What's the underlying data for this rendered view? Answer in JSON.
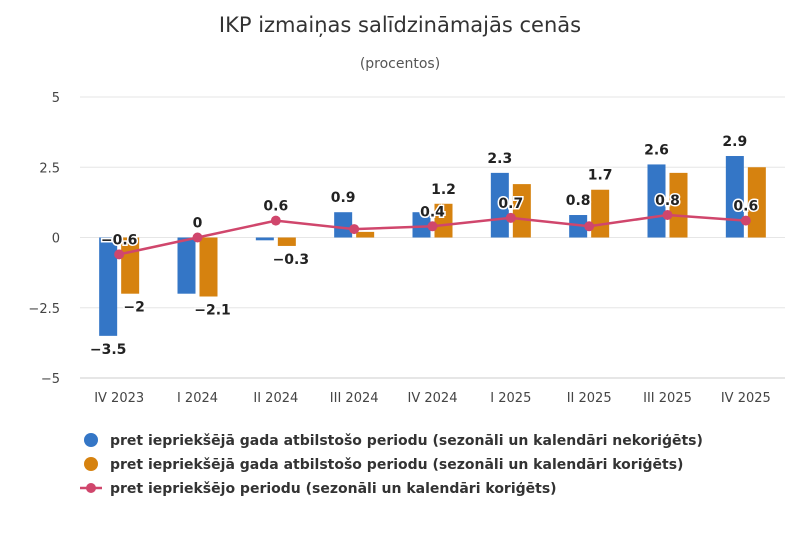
{
  "chart_data": {
    "type": "bar",
    "title": "IKP izmaiņas salīdzināmajās cenās",
    "subtitle": "(procentos)",
    "categories": [
      "IV 2023",
      "I 2024",
      "II 2024",
      "III 2024",
      "IV 2024",
      "I 2025",
      "II 2025",
      "III 2025",
      "IV 2025"
    ],
    "ylim": [
      -5,
      5
    ],
    "yticks": [
      5,
      2.5,
      0,
      -2.5,
      -5
    ],
    "ytick_labels": [
      "5",
      "2.5",
      "0",
      "−2.5",
      "−5"
    ],
    "grid": true,
    "legend_position": "bottom-left",
    "series": [
      {
        "name": "pret iepriekšējā gada atbilstošo periodu (sezonāli un kalendāri nekoriģēts)",
        "kind": "bar",
        "color": "#3476c6",
        "values": [
          -3.5,
          -2.0,
          -0.1,
          0.9,
          0.9,
          2.3,
          0.8,
          2.6,
          2.9
        ],
        "labels": [
          "−3.5",
          null,
          null,
          "0.9",
          null,
          "2.3",
          "0.8",
          "2.6",
          "2.9"
        ]
      },
      {
        "name": "pret iepriekšējā gada atbilstošo periodu (sezonāli un kalendāri koriģēts)",
        "kind": "bar",
        "color": "#d6820f",
        "values": [
          -2.0,
          -2.1,
          -0.3,
          0.2,
          1.2,
          1.9,
          1.7,
          2.3,
          2.5
        ],
        "labels": [
          "−2",
          "−2.1",
          "−0.3",
          null,
          "1.2",
          null,
          "1.7",
          null,
          null
        ]
      },
      {
        "name": "pret iepriekšējo periodu (sezonāli un kalendāri koriģēts)",
        "kind": "line",
        "color": "#d0466c",
        "values": [
          -0.6,
          0.0,
          0.6,
          0.3,
          0.4,
          0.7,
          0.4,
          0.8,
          0.6
        ],
        "labels": [
          "−0.6",
          "0",
          "0.6",
          null,
          "0.4",
          "0.7",
          null,
          "0.8",
          "0.6"
        ]
      }
    ]
  }
}
